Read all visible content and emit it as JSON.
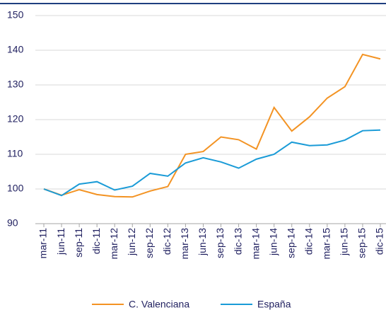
{
  "chart_data": {
    "type": "line",
    "categories": [
      "mar-11",
      "jun-11",
      "sep-11",
      "dic-11",
      "mar-12",
      "jun-12",
      "sep-12",
      "dic-12",
      "mar-13",
      "jun-13",
      "sep-13",
      "dic-13",
      "mar-14",
      "jun-14",
      "sep-14",
      "dic-14",
      "mar-15",
      "jun-15",
      "sep-15",
      "dic-15"
    ],
    "series": [
      {
        "name": "C. Valenciana",
        "color": "#f39323",
        "values": [
          100,
          98.2,
          99.8,
          98.4,
          97.8,
          97.7,
          99.4,
          100.7,
          110,
          110.8,
          115,
          114.2,
          111.5,
          123.5,
          116.7,
          120.8,
          126.2,
          129.5,
          138.8,
          137.5
        ]
      },
      {
        "name": "España",
        "color": "#1a9bd7",
        "values": [
          100,
          98.1,
          101.4,
          102.1,
          99.7,
          100.8,
          104.5,
          103.7,
          107.5,
          109,
          107.8,
          106,
          108.6,
          110,
          113.5,
          112.5,
          112.7,
          114.1,
          116.8,
          117
        ]
      }
    ],
    "ylim": [
      90,
      150
    ],
    "yticks": [
      90,
      100,
      110,
      120,
      130,
      140,
      150
    ],
    "grid": true,
    "legend": "bottom"
  }
}
